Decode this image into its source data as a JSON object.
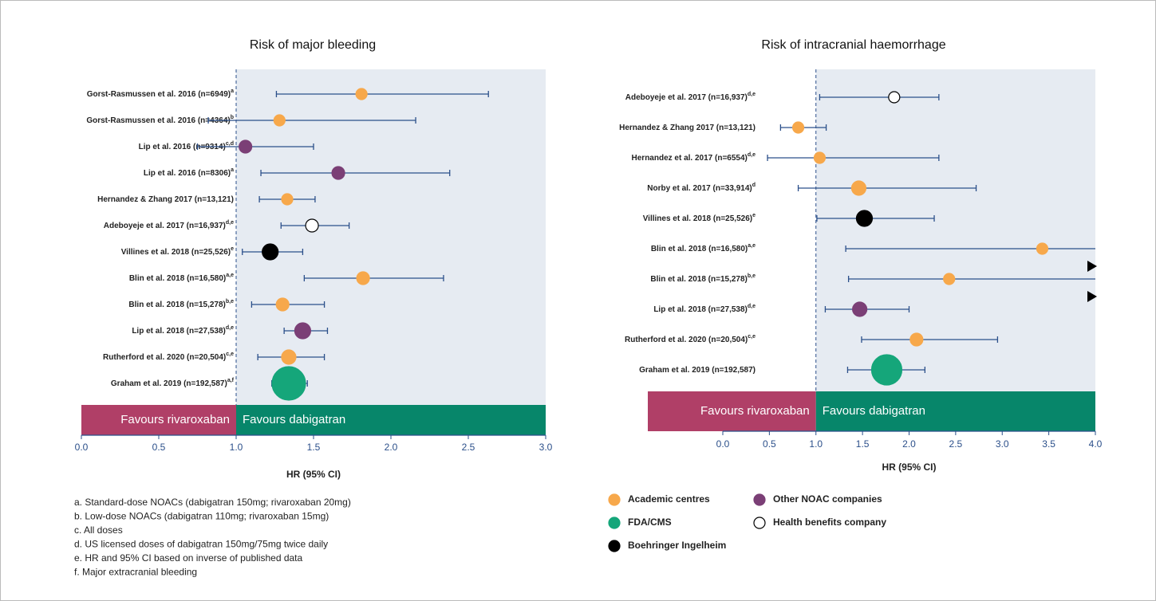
{
  "chart_data": [
    {
      "type": "forest",
      "title": "Risk of major bleeding",
      "labels": [
        "Gorst-Rasmussen et al. 2016 (n=6949)",
        "Gorst-Rasmussen et al. 2016 (n=4364)",
        "Lip et al. 2016 (n=9314)",
        "Lip et al. 2016 (n=8306)",
        "Hernandez & Zhang 2017 (n=13,121)",
        "Adeboyeje et al. 2017 (n=16,937)",
        "Villines et al. 2018 (n=25,526)",
        "Blin et al. 2018 (n=16,580)",
        "Blin et al. 2018 (n=15,278)",
        "Lip et al. 2018 (n=27,538)",
        "Rutherford et al. 2020 (n=20,504)",
        "Graham et al. 2019 (n=192,587)"
      ],
      "superscripts": [
        "a",
        "b",
        "c,d",
        "a",
        null,
        "d,e",
        "e",
        "a,e",
        "b,e",
        "d,e",
        "c,e",
        "a,f"
      ],
      "values": [
        1.81,
        1.28,
        1.06,
        1.66,
        1.33,
        1.49,
        1.22,
        1.82,
        1.3,
        1.43,
        1.34,
        1.34
      ],
      "ci_low": [
        1.26,
        0.82,
        0.75,
        1.16,
        1.15,
        1.29,
        1.04,
        1.44,
        1.1,
        1.31,
        1.14,
        1.23
      ],
      "ci_high": [
        2.63,
        2.16,
        1.5,
        2.38,
        1.51,
        1.73,
        1.43,
        2.34,
        1.57,
        1.59,
        1.57,
        1.46
      ],
      "colors": [
        "#f7a84b",
        "#f7a84b",
        "#7b3f76",
        "#7b3f76",
        "#f7a84b",
        "#ffffff",
        "#000000",
        "#f7a84b",
        "#f7a84b",
        "#7b3f76",
        "#f7a84b",
        "#15a67a"
      ],
      "marker_sizes": [
        7,
        7,
        8,
        8,
        7,
        8,
        10,
        8,
        8,
        10,
        9,
        21
      ],
      "reference": 1,
      "band_labels": [
        "Favours rivaroxaban",
        "Favours dabigatran"
      ],
      "xlabel": "HR (95% CI)",
      "xlim": [
        0,
        3
      ],
      "xticks": [
        {
          "value": 0,
          "label": "0.0"
        },
        {
          "value": 0.5,
          "label": "0.5"
        },
        {
          "value": 1,
          "label": "1.0"
        },
        {
          "value": 1.5,
          "label": "1.5"
        },
        {
          "value": 2,
          "label": "2.0"
        },
        {
          "value": 2.5,
          "label": "2.5"
        },
        {
          "value": 3,
          "label": "3.0"
        }
      ]
    },
    {
      "type": "forest",
      "title": "Risk of intracranial haemorrhage",
      "labels": [
        "Adeboyeje et al. 2017 (n=16,937)",
        "Hernandez & Zhang 2017 (n=13,121)",
        "Hernandez et al. 2017 (n=6554)",
        "Norby et al. 2017 (n=33,914)",
        "Villines et al. 2018 (n=25,526)",
        "Blin et al. 2018 (n=16,580)",
        "Blin et al. 2018 (n=15,278)",
        "Lip et al. 2018 (n=27,538)",
        "Rutherford et al. 2020 (n=20,504)",
        "Graham et al. 2019 (n=192,587)"
      ],
      "superscripts": [
        "d,e",
        null,
        "d,e",
        "d",
        "e",
        "a,e",
        "b,e",
        "d,e",
        "c,e",
        null
      ],
      "values": [
        1.84,
        0.81,
        1.04,
        1.46,
        1.52,
        3.43,
        2.43,
        1.47,
        2.08,
        1.76
      ],
      "ci_low": [
        1.04,
        0.62,
        0.48,
        0.81,
        1.01,
        1.32,
        1.35,
        1.1,
        1.49,
        1.34
      ],
      "ci_high": [
        2.32,
        1.11,
        2.32,
        2.72,
        2.27,
        null,
        null,
        2.0,
        2.95,
        2.17
      ],
      "colors": [
        "#ffffff",
        "#f7a84b",
        "#f7a84b",
        "#f7a84b",
        "#000000",
        "#f7a84b",
        "#f7a84b",
        "#7b3f76",
        "#f7a84b",
        "#15a67a"
      ],
      "marker_sizes": [
        7,
        7,
        7,
        9,
        10,
        7,
        7,
        9,
        8,
        19
      ],
      "reference": 1,
      "band_labels": [
        "Favours rivaroxaban",
        "Favours dabigatran"
      ],
      "xlabel": "HR (95% CI)",
      "xlim": [
        0,
        4
      ],
      "xticks": [
        {
          "value": 0,
          "label": "0.0"
        },
        {
          "value": 0.5,
          "label": "0.5"
        },
        {
          "value": 1,
          "label": "1.0"
        },
        {
          "value": 1.5,
          "label": "1.5"
        },
        {
          "value": 2,
          "label": "2.0"
        },
        {
          "value": 2.5,
          "label": "2.5"
        },
        {
          "value": 3,
          "label": "3.0"
        },
        {
          "value": 3.5,
          "label": "3.5"
        },
        {
          "value": 4,
          "label": "4.0"
        }
      ]
    }
  ],
  "legend": [
    {
      "name": "Academic centres",
      "color": "#f7a84b"
    },
    {
      "name": "FDA/CMS",
      "color": "#15a67a"
    },
    {
      "name": "Boehringer Ingelheim",
      "color": "#000000"
    },
    {
      "name": "Other NOAC companies",
      "color": "#7b3f76"
    },
    {
      "name": "Health benefits company",
      "color": "#ffffff"
    }
  ],
  "footnotes": [
    "a. Standard-dose NOACs (dabigatran 150mg; rivaroxaban 20mg)",
    "b. Low-dose NOACs (dabigatran 110mg; rivaroxaban 15mg)",
    "c. All doses",
    "d. US licensed doses of dabigatran 150mg/75mg twice daily",
    "e. HR and 95% CI based on inverse of published data",
    "f. Major extracranial bleeding"
  ]
}
